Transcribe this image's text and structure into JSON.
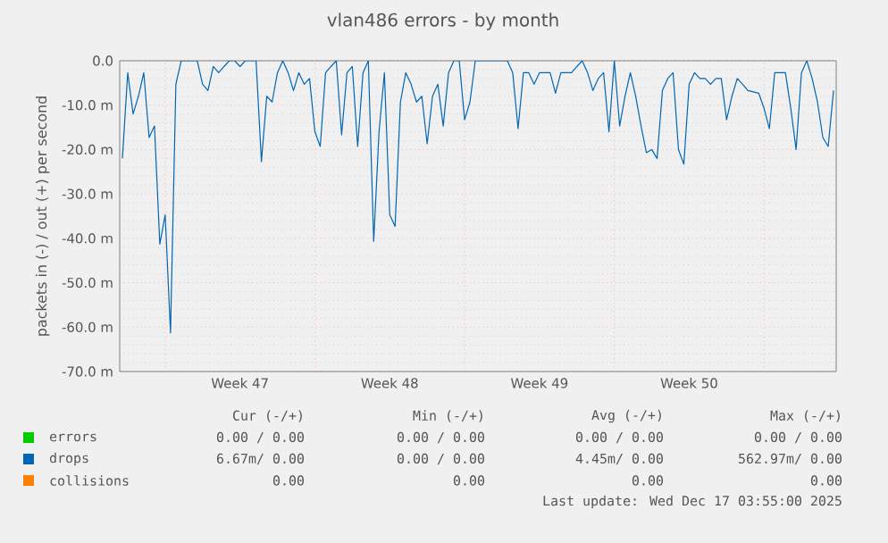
{
  "chart_data": {
    "type": "line",
    "title": "vlan486 errors - by month",
    "ylabel": "packets in (-) / out (+) per second",
    "categories": [
      null,
      null,
      null,
      null,
      null,
      null,
      null,
      null,
      null,
      null,
      null,
      null,
      null,
      null,
      null,
      null,
      null,
      null,
      null,
      null,
      null,
      null,
      "Week 47",
      null,
      null,
      null,
      null,
      null,
      null,
      null,
      null,
      null,
      null,
      null,
      null,
      null,
      null,
      null,
      null,
      null,
      null,
      null,
      null,
      null,
      null,
      null,
      null,
      null,
      null,
      null,
      "Week 48",
      null,
      null,
      null,
      null,
      null,
      null,
      null,
      null,
      null,
      null,
      null,
      null,
      null,
      null,
      null,
      null,
      null,
      null,
      null,
      null,
      null,
      null,
      null,
      null,
      null,
      null,
      null,
      "Week 49",
      null,
      null,
      null,
      null,
      null,
      null,
      null,
      null,
      null,
      null,
      null,
      null,
      null,
      null,
      null,
      null,
      null,
      null,
      null,
      null,
      null,
      null,
      null,
      null,
      null,
      null,
      null,
      "Week 50",
      null,
      null,
      null,
      null,
      null,
      null,
      null,
      null,
      null,
      null,
      null,
      null,
      null,
      null,
      null,
      null,
      null,
      null,
      null,
      null,
      null,
      null,
      null,
      null,
      null,
      null,
      null
    ],
    "ylim": [
      -70,
      0
    ],
    "yticks": [
      {
        "value": -70,
        "label": "-70.0 m"
      },
      {
        "value": -60,
        "label": "-60.0 m"
      },
      {
        "value": -50,
        "label": "-50.0 m"
      },
      {
        "value": -40,
        "label": "-40.0 m"
      },
      {
        "value": -30,
        "label": "-30.0 m"
      },
      {
        "value": -20,
        "label": "-20.0 m"
      },
      {
        "value": -10,
        "label": "-10.0 m"
      },
      {
        "value": 0,
        "label": "0.0"
      }
    ],
    "grid": true,
    "legend": "bottom",
    "marker": "none",
    "line_style": "solid",
    "series": [
      {
        "name": "errors",
        "color": "#00cc00",
        "values": [
          null,
          null,
          null,
          null,
          null,
          null,
          null,
          null,
          null,
          null,
          null,
          null,
          null,
          null,
          null,
          null,
          null,
          null,
          null,
          null,
          null,
          null,
          null,
          null,
          null,
          null,
          null,
          null,
          null,
          null,
          null,
          null,
          null,
          null,
          null,
          null,
          null,
          null,
          null,
          null,
          null,
          null,
          null,
          null,
          null,
          null,
          null,
          null,
          null,
          null,
          null,
          null,
          null,
          null,
          null,
          null,
          null,
          null,
          null,
          null,
          null,
          null,
          null,
          null,
          null,
          null,
          null,
          null,
          null,
          null,
          null,
          null,
          null,
          null,
          null,
          null,
          null,
          null,
          null,
          null,
          null,
          null,
          null,
          null,
          null,
          null,
          null,
          null,
          null,
          null,
          null,
          null,
          null,
          null,
          null,
          null,
          null,
          null,
          null,
          null,
          null,
          null,
          null,
          null,
          null,
          null,
          null,
          null,
          null,
          null,
          null,
          null,
          null,
          null,
          null,
          null,
          null,
          null,
          null,
          null,
          null,
          null,
          null,
          null,
          null,
          null,
          null,
          null,
          null,
          null,
          null,
          null,
          null,
          null
        ]
      },
      {
        "name": "drops",
        "color": "#0066b3",
        "values": [
          -22.0,
          -2.7,
          -12.0,
          -8.0,
          -2.7,
          -17.3,
          -14.7,
          -41.3,
          -34.7,
          -61.3,
          -5.3,
          0,
          0,
          0,
          0,
          -5.3,
          -6.7,
          -1.3,
          -2.7,
          -1.3,
          0,
          0,
          -1.3,
          0,
          0,
          0,
          -22.7,
          -8.0,
          -9.3,
          -2.7,
          0,
          -2.7,
          -6.7,
          -2.7,
          -5.3,
          -4.0,
          -16.0,
          -19.3,
          -2.7,
          -1.3,
          0,
          -16.7,
          -2.7,
          -1.3,
          -19.3,
          -2.7,
          0,
          -40.7,
          -16.0,
          -2.7,
          -34.7,
          -37.3,
          -9.3,
          -2.7,
          -5.3,
          -9.3,
          -8.0,
          -18.7,
          -8.0,
          -5.3,
          -14.7,
          -2.7,
          0,
          0,
          -13.3,
          -9.3,
          0,
          0,
          0,
          0,
          0,
          0,
          0,
          -2.7,
          -15.3,
          -2.7,
          -2.7,
          -5.3,
          -2.7,
          -2.7,
          -2.7,
          -7.3,
          -2.7,
          -2.7,
          -2.7,
          -1.3,
          0,
          -2.7,
          -6.7,
          -4.0,
          -2.7,
          -16.0,
          0,
          -14.7,
          -8.0,
          -2.7,
          -8.0,
          -14.7,
          -20.7,
          -20.0,
          -22.0,
          -6.7,
          -4.0,
          -2.7,
          -20.0,
          -23.3,
          -5.3,
          -2.7,
          -4.0,
          -4.0,
          -5.3,
          -4.0,
          -4.0,
          -13.3,
          -8.0,
          -4.0,
          -5.3,
          -6.7,
          -7.0,
          -7.3,
          -10.7,
          -15.3,
          -2.7,
          -2.7,
          -2.7,
          -10.7,
          -20.0,
          -2.7,
          0,
          -4.0,
          -9.3,
          -17.3,
          -19.3,
          -6.7
        ]
      },
      {
        "name": "collisions",
        "color": "#ff7f00",
        "values": [
          null,
          null,
          null,
          null,
          null,
          null,
          null,
          null,
          null,
          null,
          null,
          null,
          null,
          null,
          null,
          null,
          null,
          null,
          null,
          null,
          null,
          null,
          null,
          null,
          null,
          null,
          null,
          null,
          null,
          null,
          null,
          null,
          null,
          null,
          null,
          null,
          null,
          null,
          null,
          null,
          null,
          null,
          null,
          null,
          null,
          null,
          null,
          null,
          null,
          null,
          null,
          null,
          null,
          null,
          null,
          null,
          null,
          null,
          null,
          null,
          null,
          null,
          null,
          null,
          null,
          null,
          null,
          null,
          null,
          null,
          null,
          null,
          null,
          null,
          null,
          null,
          null,
          null,
          null,
          null,
          null,
          null,
          null,
          null,
          null,
          null,
          null,
          null,
          null,
          null,
          null,
          null,
          null,
          null,
          null,
          null,
          null,
          null,
          null,
          null,
          null,
          null,
          null,
          null,
          null,
          null,
          null,
          null,
          null,
          null,
          null,
          null,
          null,
          null,
          null,
          null,
          null,
          null,
          null,
          null,
          null,
          null,
          null,
          null,
          null,
          null,
          null,
          null,
          null,
          null,
          null,
          null,
          null,
          null
        ]
      }
    ],
    "annotations": [
      "Cur (-/+)",
      "Min (-/+)",
      "Avg (-/+)",
      "Max (-/+)",
      "0.00 / 0.00",
      "0.00 / 0.00",
      "0.00 / 0.00",
      "0.00 / 0.00",
      "6.67m/ 0.00",
      "0.00 / 0.00",
      "4.45m/ 0.00",
      "562.97m/ 0.00",
      "0.00",
      "0.00",
      "0.00",
      "0.00",
      "Last update: Wed Dec 17 03:55:00 2025"
    ]
  }
}
